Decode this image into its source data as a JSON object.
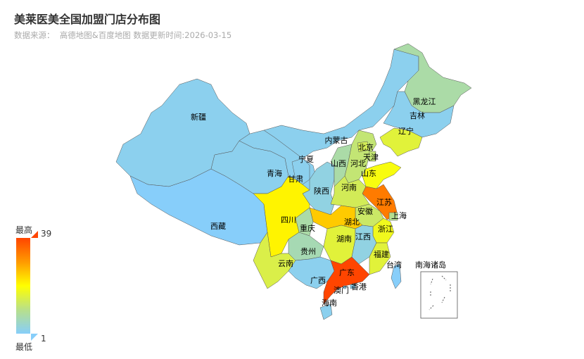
{
  "title": "美莱医美全国加盟门店分布图",
  "subtitle": "数据来源：  高德地图&百度地图 数据更新时间:2026-03-15",
  "visual_map": {
    "high_label": "最高",
    "low_label": "最低",
    "max": 39,
    "min": 1,
    "colors": [
      "#87cefa",
      "#b8e08a",
      "#ffff00",
      "#ff9a00",
      "#ff4500"
    ]
  },
  "south_sea_label": "南海诸岛",
  "chart_data": {
    "type": "map",
    "region": "China",
    "provinces": [
      {
        "name": "新疆",
        "value": 2
      },
      {
        "name": "西藏",
        "value": 1
      },
      {
        "name": "青海",
        "value": 2
      },
      {
        "name": "甘肃",
        "value": 2
      },
      {
        "name": "内蒙古",
        "value": 2
      },
      {
        "name": "黑龙江",
        "value": 8
      },
      {
        "name": "吉林",
        "value": 2
      },
      {
        "name": "辽宁",
        "value": 16
      },
      {
        "name": "宁夏",
        "value": 2
      },
      {
        "name": "陕西",
        "value": 3
      },
      {
        "name": "山西",
        "value": 8
      },
      {
        "name": "河北",
        "value": 12
      },
      {
        "name": "北京",
        "value": 14
      },
      {
        "name": "天津",
        "value": 12
      },
      {
        "name": "山东",
        "value": 19
      },
      {
        "name": "河南",
        "value": 14
      },
      {
        "name": "江苏",
        "value": 33
      },
      {
        "name": "上海",
        "value": 10
      },
      {
        "name": "安徽",
        "value": 13
      },
      {
        "name": "浙江",
        "value": 18
      },
      {
        "name": "湖北",
        "value": 25
      },
      {
        "name": "重庆",
        "value": 8
      },
      {
        "name": "四川",
        "value": 21
      },
      {
        "name": "湖南",
        "value": 16
      },
      {
        "name": "江西",
        "value": 3
      },
      {
        "name": "福建",
        "value": 16
      },
      {
        "name": "贵州",
        "value": 7
      },
      {
        "name": "云南",
        "value": 15
      },
      {
        "name": "广西",
        "value": 2
      },
      {
        "name": "广东",
        "value": 39
      },
      {
        "name": "海南",
        "value": 2
      },
      {
        "name": "台湾",
        "value": 1
      },
      {
        "name": "香港",
        "value": 2
      },
      {
        "name": "澳门",
        "value": 2
      }
    ]
  }
}
